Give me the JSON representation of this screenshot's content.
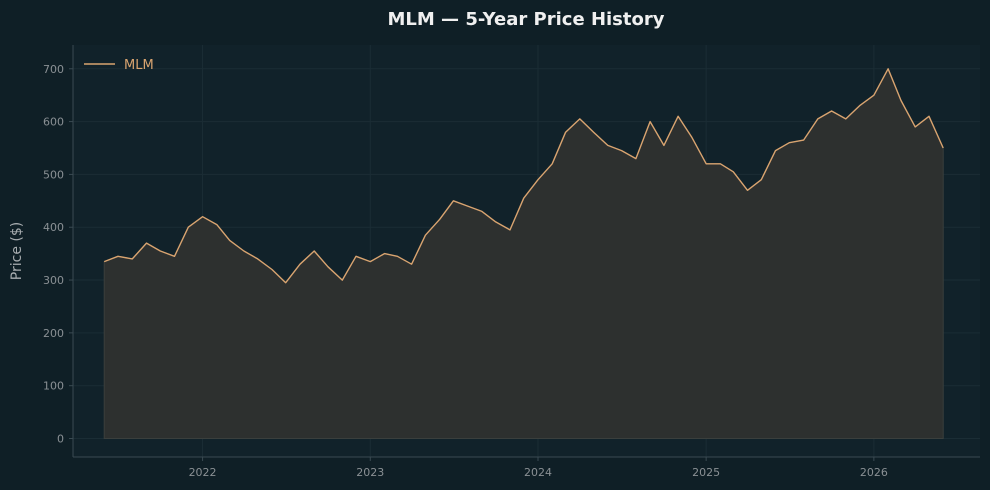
{
  "colors": {
    "background": "#0f1f26",
    "plot_background": "#11222a",
    "line": "#d9a470",
    "area_fill": "#2d302f",
    "spine": "#3a4a52",
    "tick_label": "#8a9094",
    "axis_label": "#a7acaf",
    "title": "#f0f0f0",
    "legend_text": "#d9a470"
  },
  "chart_data": {
    "type": "area",
    "title": "MLM — 5-Year Price History",
    "xlabel": "",
    "ylabel": "Price ($)",
    "ylim": [
      -35,
      745
    ],
    "xlim": [
      "2021-03-25",
      "2026-08-20"
    ],
    "yticks": [
      0,
      100,
      200,
      300,
      400,
      500,
      600,
      700
    ],
    "xticks": [
      "2022-01-01",
      "2023-01-01",
      "2024-01-01",
      "2025-01-01",
      "2026-01-01"
    ],
    "xtick_labels": [
      "2022",
      "2023",
      "2024",
      "2025",
      "2026"
    ],
    "grid": true,
    "legend": {
      "position": "top-left",
      "entries": [
        "MLM"
      ]
    },
    "series": [
      {
        "name": "MLM",
        "x": [
          "2021-06-01",
          "2021-07-01",
          "2021-08-01",
          "2021-09-01",
          "2021-10-01",
          "2021-11-01",
          "2021-12-01",
          "2022-01-01",
          "2022-02-01",
          "2022-03-01",
          "2022-04-01",
          "2022-05-01",
          "2022-06-01",
          "2022-07-01",
          "2022-08-01",
          "2022-09-01",
          "2022-10-01",
          "2022-11-01",
          "2022-12-01",
          "2023-01-01",
          "2023-02-01",
          "2023-03-01",
          "2023-04-01",
          "2023-05-01",
          "2023-06-01",
          "2023-07-01",
          "2023-08-01",
          "2023-09-01",
          "2023-10-01",
          "2023-11-01",
          "2023-12-01",
          "2024-01-01",
          "2024-02-01",
          "2024-03-01",
          "2024-04-01",
          "2024-05-01",
          "2024-06-01",
          "2024-07-01",
          "2024-08-01",
          "2024-09-01",
          "2024-10-01",
          "2024-11-01",
          "2024-12-01",
          "2025-01-01",
          "2025-02-01",
          "2025-03-01",
          "2025-04-01",
          "2025-05-01",
          "2025-06-01",
          "2025-07-01",
          "2025-08-01",
          "2025-09-01",
          "2025-10-01",
          "2025-11-01",
          "2025-12-01",
          "2026-01-01",
          "2026-02-01",
          "2026-03-01",
          "2026-04-01",
          "2026-05-01",
          "2026-06-01"
        ],
        "values": [
          335,
          345,
          340,
          370,
          355,
          345,
          400,
          420,
          405,
          375,
          355,
          340,
          320,
          295,
          330,
          355,
          325,
          300,
          345,
          335,
          350,
          345,
          330,
          385,
          415,
          450,
          440,
          430,
          410,
          395,
          455,
          490,
          520,
          580,
          605,
          580,
          555,
          545,
          530,
          600,
          555,
          610,
          570,
          520,
          520,
          505,
          470,
          490,
          545,
          560,
          565,
          605,
          620,
          605,
          630,
          650,
          700,
          640,
          590,
          610,
          550
        ]
      }
    ]
  }
}
